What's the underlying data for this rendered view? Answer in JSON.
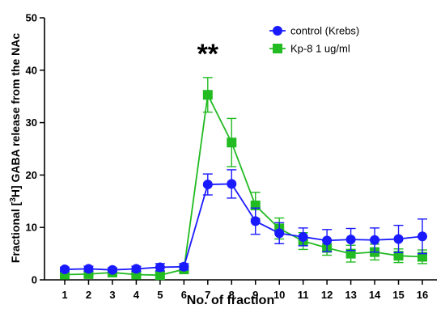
{
  "chart_data": {
    "type": "line",
    "xlabel": "No. of fraction",
    "ylabel_parts": [
      "Fractional [",
      "3",
      "H] GABA release from the NAc"
    ],
    "categories": [
      1,
      2,
      3,
      4,
      5,
      6,
      7,
      8,
      9,
      10,
      11,
      12,
      13,
      14,
      15,
      16
    ],
    "ylim": [
      0,
      50
    ],
    "yticks": [
      0,
      10,
      20,
      30,
      40,
      50
    ],
    "grid": false,
    "legend_position": "top-right",
    "annotation": {
      "text": "**",
      "x": 7
    },
    "series": [
      {
        "name": "control (Krebs)",
        "color": "#1a1aff",
        "marker": "circle",
        "values": [
          2.0,
          2.1,
          1.9,
          2.1,
          2.4,
          2.5,
          18.2,
          18.3,
          11.2,
          8.9,
          8.2,
          7.5,
          7.7,
          7.6,
          7.8,
          8.3
        ],
        "errors": [
          0.4,
          0.5,
          0.4,
          0.5,
          0.7,
          0.6,
          2.0,
          2.7,
          2.5,
          2.0,
          1.7,
          2.1,
          2.1,
          2.3,
          2.6,
          3.3
        ]
      },
      {
        "name": "Kp-8 1 ug/ml",
        "color": "#22bb22",
        "marker": "square",
        "values": [
          1.0,
          1.1,
          1.4,
          1.0,
          0.9,
          2.0,
          35.3,
          26.2,
          14.2,
          9.8,
          7.4,
          6.1,
          5.0,
          5.3,
          4.6,
          4.4
        ],
        "errors": [
          0.3,
          0.3,
          0.4,
          0.3,
          0.3,
          0.4,
          3.3,
          4.6,
          2.5,
          2.0,
          1.6,
          1.4,
          1.6,
          1.5,
          1.3,
          1.3
        ]
      }
    ]
  }
}
